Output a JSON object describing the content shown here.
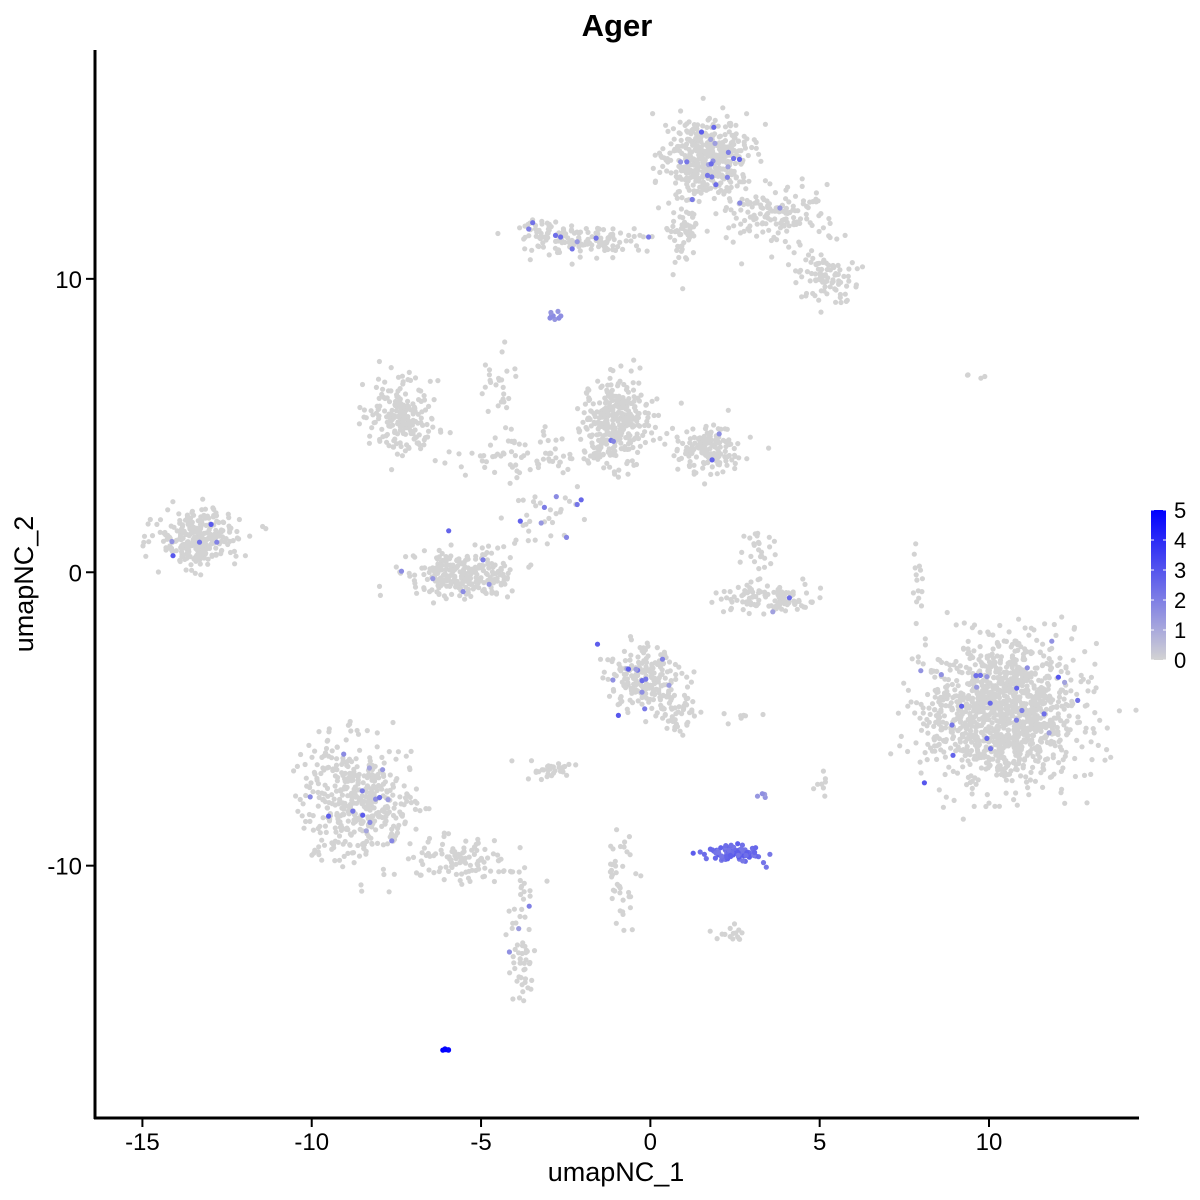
{
  "chart_data": {
    "type": "scatter",
    "title": "Ager",
    "xlabel": "umapNC_1",
    "ylabel": "umapNC_2",
    "xlim": [
      -16.4,
      14.4
    ],
    "ylim": [
      -18.6,
      17.8
    ],
    "xticks": [
      -15,
      -10,
      -5,
      0,
      5,
      10
    ],
    "yticks": [
      -10,
      0,
      10
    ],
    "grid": false,
    "legend": {
      "placement": "right",
      "type": "colorbar",
      "ticks": [
        5,
        4,
        3,
        2,
        1,
        0
      ],
      "low_color": "#d3d3d3",
      "high_color": "#0000ff",
      "range": [
        0,
        5
      ]
    },
    "clusters_note_free": true,
    "clusters": [
      {
        "center": [
          1.6,
          14.2
        ],
        "sd": [
          0.6,
          0.7
        ],
        "n": 420,
        "expression": 0,
        "sparse_expressing_fraction": 0.03
      },
      {
        "center": [
          3.6,
          12.2
        ],
        "sd": [
          0.8,
          0.5
        ],
        "n": 160,
        "expression": 0,
        "sparse_expressing_fraction": 0.01
      },
      {
        "center": [
          5.2,
          10.0
        ],
        "sd": [
          0.5,
          0.4
        ],
        "n": 90,
        "expression": 0,
        "sparse_expressing_fraction": 0.01
      },
      {
        "center": [
          1.0,
          11.6
        ],
        "sd": [
          0.3,
          0.6
        ],
        "n": 60,
        "expression": 0,
        "sparse_expressing_fraction": 0
      },
      {
        "center": [
          -1.7,
          11.3
        ],
        "sd": [
          0.8,
          0.25
        ],
        "n": 100,
        "expression": 0,
        "sparse_expressing_fraction": 0.02
      },
      {
        "center": [
          -3.0,
          11.5
        ],
        "sd": [
          0.4,
          0.3
        ],
        "n": 60,
        "expression": 0,
        "sparse_expressing_fraction": 0.02
      },
      {
        "center": [
          -2.8,
          8.8
        ],
        "sd": [
          0.1,
          0.15
        ],
        "n": 8,
        "expression": 1.5,
        "sparse_expressing_fraction": 0
      },
      {
        "center": [
          -13.4,
          1.2
        ],
        "sd": [
          0.6,
          0.5
        ],
        "n": 260,
        "expression": 0,
        "sparse_expressing_fraction": 0.01
      },
      {
        "center": [
          -7.4,
          5.3
        ],
        "sd": [
          0.45,
          0.6
        ],
        "n": 200,
        "expression": 0,
        "sparse_expressing_fraction": 0
      },
      {
        "center": [
          -1.0,
          5.2
        ],
        "sd": [
          0.5,
          0.7
        ],
        "n": 320,
        "expression": 0,
        "sparse_expressing_fraction": 0.01
      },
      {
        "center": [
          1.7,
          4.2
        ],
        "sd": [
          0.5,
          0.4
        ],
        "n": 160,
        "expression": 0,
        "sparse_expressing_fraction": 0.02
      },
      {
        "center": [
          -3.5,
          4.0
        ],
        "sd": [
          1.3,
          0.4
        ],
        "n": 90,
        "expression": 0,
        "sparse_expressing_fraction": 0
      },
      {
        "center": [
          -4.5,
          6.5
        ],
        "sd": [
          0.3,
          0.6
        ],
        "n": 25,
        "expression": 0,
        "sparse_expressing_fraction": 0
      },
      {
        "center": [
          -5.5,
          -0.1
        ],
        "sd": [
          0.8,
          0.4
        ],
        "n": 260,
        "expression": 0,
        "sparse_expressing_fraction": 0.03
      },
      {
        "center": [
          -3.2,
          2.0
        ],
        "sd": [
          0.6,
          0.6
        ],
        "n": 40,
        "expression": 0,
        "sparse_expressing_fraction": 0.05
      },
      {
        "center": [
          3.5,
          -0.9
        ],
        "sd": [
          0.8,
          0.25
        ],
        "n": 110,
        "expression": 0,
        "sparse_expressing_fraction": 0.02
      },
      {
        "center": [
          3.2,
          0.8
        ],
        "sd": [
          0.2,
          0.4
        ],
        "n": 25,
        "expression": 0,
        "sparse_expressing_fraction": 0
      },
      {
        "center": [
          -0.2,
          -3.7
        ],
        "sd": [
          0.5,
          0.5
        ],
        "n": 210,
        "expression": 0,
        "sparse_expressing_fraction": 0.04
      },
      {
        "center": [
          0.8,
          -4.8
        ],
        "sd": [
          0.35,
          0.4
        ],
        "n": 50,
        "expression": 0,
        "sparse_expressing_fraction": 0
      },
      {
        "center": [
          10.4,
          -4.8
        ],
        "sd": [
          1.1,
          1.2
        ],
        "n": 1300,
        "expression": 0,
        "sparse_expressing_fraction": 0.02
      },
      {
        "center": [
          -8.6,
          -7.8
        ],
        "sd": [
          0.8,
          1.0
        ],
        "n": 460,
        "expression": 0,
        "sparse_expressing_fraction": 0.02
      },
      {
        "center": [
          -5.5,
          -9.8
        ],
        "sd": [
          0.9,
          0.35
        ],
        "n": 110,
        "expression": 0,
        "sparse_expressing_fraction": 0
      },
      {
        "center": [
          -3.8,
          -13.0
        ],
        "sd": [
          0.2,
          1.1
        ],
        "n": 60,
        "expression": 0,
        "sparse_expressing_fraction": 0.02
      },
      {
        "center": [
          2.4,
          -9.6
        ],
        "sd": [
          0.4,
          0.15
        ],
        "n": 90,
        "expression": 2.5,
        "sparse_expressing_fraction": 0
      },
      {
        "center": [
          -6.0,
          -16.3
        ],
        "sd": [
          0.08,
          0.04
        ],
        "n": 6,
        "expression": 5,
        "sparse_expressing_fraction": 0
      },
      {
        "center": [
          -3.0,
          -6.8
        ],
        "sd": [
          0.4,
          0.15
        ],
        "n": 30,
        "expression": 0,
        "sparse_expressing_fraction": 0
      },
      {
        "center": [
          -0.9,
          -10.2
        ],
        "sd": [
          0.25,
          0.8
        ],
        "n": 40,
        "expression": 0,
        "sparse_expressing_fraction": 0
      },
      {
        "center": [
          2.3,
          -12.4
        ],
        "sd": [
          0.3,
          0.15
        ],
        "n": 15,
        "expression": 0,
        "sparse_expressing_fraction": 0
      },
      {
        "center": [
          7.9,
          -0.6
        ],
        "sd": [
          0.1,
          0.6
        ],
        "n": 15,
        "expression": 0,
        "sparse_expressing_fraction": 0
      },
      {
        "center": [
          5.1,
          -7.3
        ],
        "sd": [
          0.1,
          0.2
        ],
        "n": 8,
        "expression": 0,
        "sparse_expressing_fraction": 0
      },
      {
        "center": [
          3.3,
          -7.6
        ],
        "sd": [
          0.1,
          0.1
        ],
        "n": 4,
        "expression": 1.5,
        "sparse_expressing_fraction": 0
      },
      {
        "center": [
          9.6,
          6.7
        ],
        "sd": [
          0.2,
          0.05
        ],
        "n": 4,
        "expression": 0,
        "sparse_expressing_fraction": 0
      },
      {
        "center": [
          2.8,
          -4.9
        ],
        "sd": [
          0.3,
          0.05
        ],
        "n": 8,
        "expression": 0,
        "sparse_expressing_fraction": 0
      }
    ]
  }
}
